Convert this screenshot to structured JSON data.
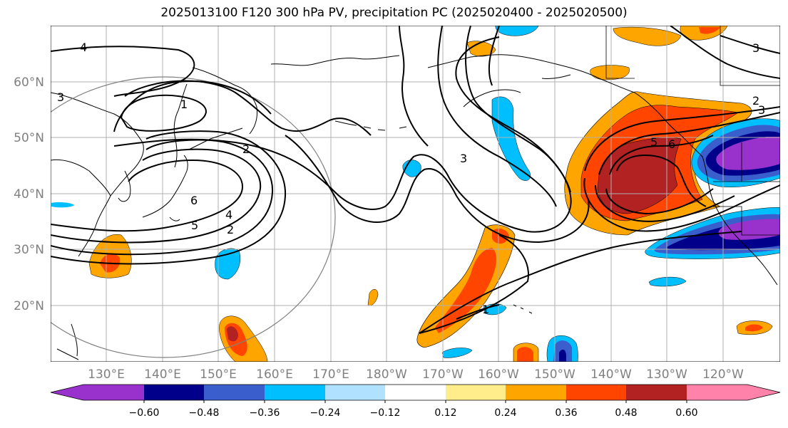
{
  "title": "2025013100 F120 300 hPa PV, precipitation PC (2025020400 - 2025020500)",
  "lat_labels": [
    "20°N",
    "30°N",
    "40°N",
    "50°N",
    "60°N"
  ],
  "lon_labels": [
    "130°E",
    "140°E",
    "150°E",
    "160°E",
    "170°E",
    "180°W",
    "170°W",
    "160°W",
    "150°W",
    "140°W",
    "130°W",
    "120°W"
  ],
  "contour_labels": [
    "1",
    "1",
    "2",
    "2",
    "2",
    "3",
    "3",
    "3",
    "3",
    "4",
    "4",
    "5",
    "5",
    "6",
    "6"
  ],
  "colorbar": {
    "tick_labels": [
      "−0.60",
      "−0.48",
      "−0.36",
      "−0.24",
      "−0.12",
      "0.12",
      "0.24",
      "0.36",
      "0.48",
      "0.60"
    ],
    "colors": [
      "#9932cc",
      "#00008b",
      "#3a5fcd",
      "#00bfff",
      "#b0e2ff",
      "#ffffff",
      "#ffec8b",
      "#ffa500",
      "#ff4500",
      "#b22222",
      "#ff82ab"
    ]
  },
  "map": {
    "extent_lon": [
      120,
      250
    ],
    "extent_lat": [
      10,
      70
    ],
    "gridlines": true
  }
}
